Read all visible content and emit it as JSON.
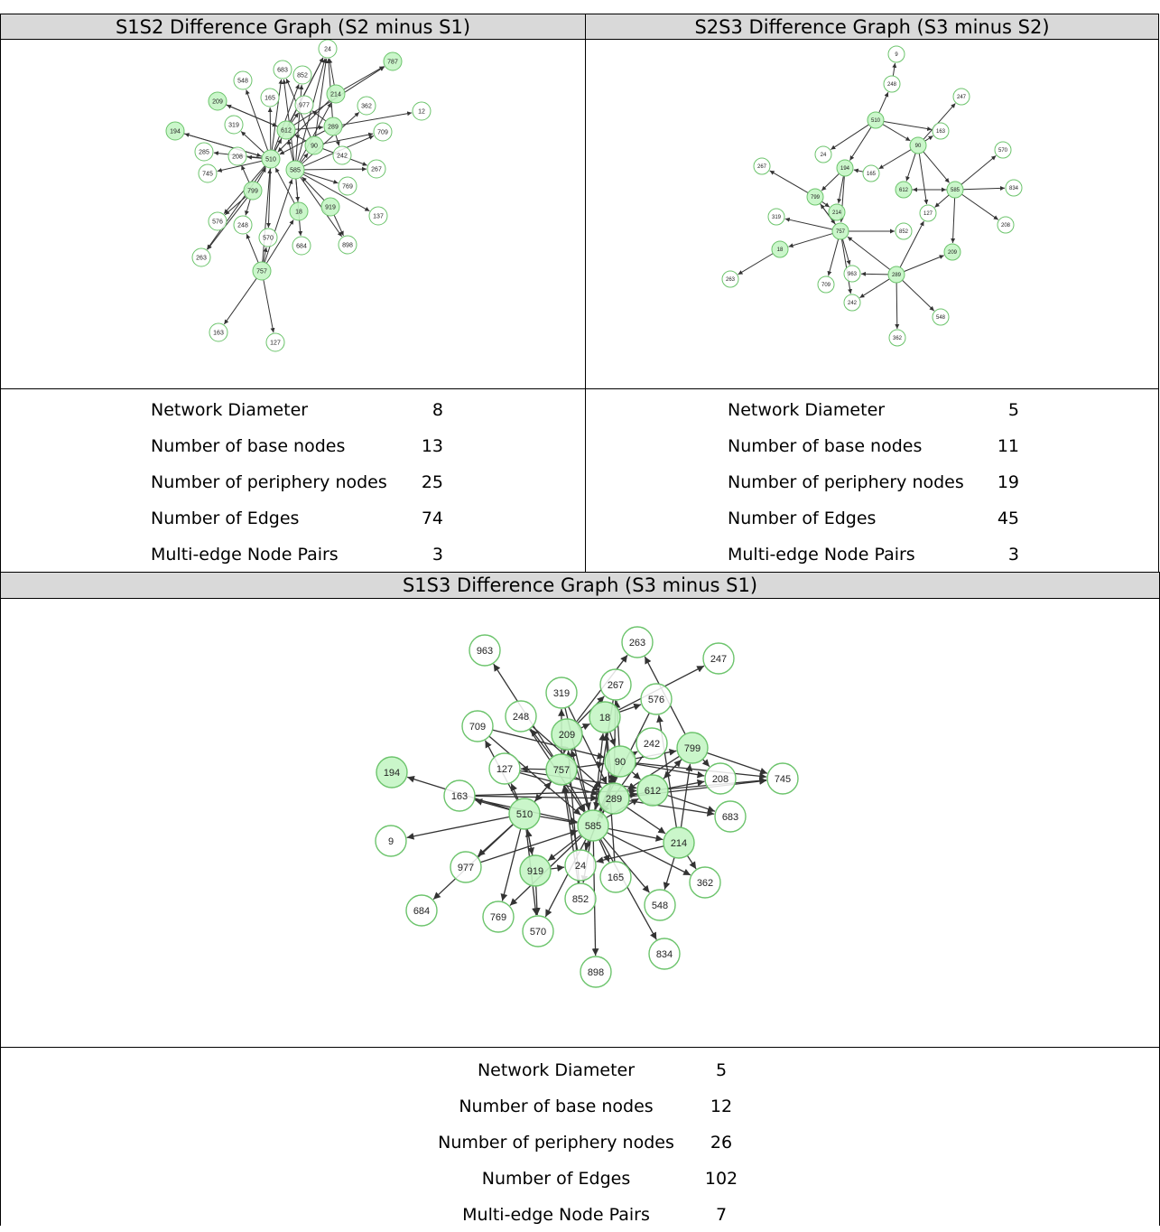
{
  "panels": [
    {
      "id": "s1s2",
      "title": "S1S2 Difference Graph (S2 minus S1)",
      "stats": [
        {
          "label": "Network Diameter",
          "value": "8"
        },
        {
          "label": "Number of base nodes",
          "value": "13"
        },
        {
          "label": "Number of periphery nodes",
          "value": "25"
        },
        {
          "label": "Number of Edges",
          "value": "74"
        },
        {
          "label": "Multi-edge Node Pairs",
          "value": "3"
        }
      ],
      "nodes": [
        {
          "id": "24",
          "base": false
        },
        {
          "id": "787",
          "base": true
        },
        {
          "id": "548",
          "base": false
        },
        {
          "id": "683",
          "base": false
        },
        {
          "id": "852",
          "base": false
        },
        {
          "id": "214",
          "base": true
        },
        {
          "id": "209",
          "base": true
        },
        {
          "id": "165",
          "base": false
        },
        {
          "id": "977",
          "base": false
        },
        {
          "id": "362",
          "base": false
        },
        {
          "id": "12",
          "base": false
        },
        {
          "id": "319",
          "base": false
        },
        {
          "id": "612",
          "base": true
        },
        {
          "id": "289",
          "base": true
        },
        {
          "id": "709",
          "base": false
        },
        {
          "id": "194",
          "base": true
        },
        {
          "id": "90",
          "base": true
        },
        {
          "id": "285",
          "base": false
        },
        {
          "id": "208",
          "base": false
        },
        {
          "id": "510",
          "base": true
        },
        {
          "id": "242",
          "base": false
        },
        {
          "id": "585",
          "base": true
        },
        {
          "id": "267",
          "base": false
        },
        {
          "id": "745",
          "base": false
        },
        {
          "id": "799",
          "base": true
        },
        {
          "id": "769",
          "base": false
        },
        {
          "id": "919",
          "base": true
        },
        {
          "id": "137",
          "base": false
        },
        {
          "id": "18",
          "base": true
        },
        {
          "id": "576",
          "base": false
        },
        {
          "id": "248",
          "base": false
        },
        {
          "id": "570",
          "base": false
        },
        {
          "id": "684",
          "base": false
        },
        {
          "id": "898",
          "base": false
        },
        {
          "id": "263",
          "base": false
        },
        {
          "id": "757",
          "base": true
        },
        {
          "id": "163",
          "base": false
        },
        {
          "id": "127",
          "base": false
        }
      ]
    },
    {
      "id": "s2s3",
      "title": "S2S3 Difference Graph (S3 minus S2)",
      "stats": [
        {
          "label": "Network Diameter",
          "value": "5"
        },
        {
          "label": "Number of base nodes",
          "value": "11"
        },
        {
          "label": "Number of periphery nodes",
          "value": "19"
        },
        {
          "label": "Number of Edges",
          "value": "45"
        },
        {
          "label": "Multi-edge Node Pairs",
          "value": "3"
        }
      ],
      "nodes": [
        {
          "id": "9",
          "base": false
        },
        {
          "id": "248",
          "base": false
        },
        {
          "id": "247",
          "base": false
        },
        {
          "id": "510",
          "base": true
        },
        {
          "id": "163",
          "base": false
        },
        {
          "id": "90",
          "base": true
        },
        {
          "id": "570",
          "base": false
        },
        {
          "id": "24",
          "base": false
        },
        {
          "id": "267",
          "base": false
        },
        {
          "id": "194",
          "base": true
        },
        {
          "id": "165",
          "base": false
        },
        {
          "id": "612",
          "base": true
        },
        {
          "id": "585",
          "base": true
        },
        {
          "id": "834",
          "base": false
        },
        {
          "id": "799",
          "base": true
        },
        {
          "id": "214",
          "base": true
        },
        {
          "id": "127",
          "base": false
        },
        {
          "id": "208",
          "base": false
        },
        {
          "id": "319",
          "base": false
        },
        {
          "id": "757",
          "base": true
        },
        {
          "id": "852",
          "base": false
        },
        {
          "id": "18",
          "base": true
        },
        {
          "id": "209",
          "base": true
        },
        {
          "id": "263",
          "base": false
        },
        {
          "id": "963",
          "base": false
        },
        {
          "id": "289",
          "base": true
        },
        {
          "id": "709",
          "base": false
        },
        {
          "id": "242",
          "base": false
        },
        {
          "id": "548",
          "base": false
        },
        {
          "id": "362",
          "base": false
        }
      ]
    },
    {
      "id": "s1s3",
      "title": "S1S3 Difference Graph (S3 minus S1)",
      "stats": [
        {
          "label": "Network Diameter",
          "value": "5"
        },
        {
          "label": "Number of base nodes",
          "value": "12"
        },
        {
          "label": "Number of periphery nodes",
          "value": "26"
        },
        {
          "label": "Number of Edges",
          "value": "102"
        },
        {
          "label": "Multi-edge Node Pairs",
          "value": "7"
        }
      ],
      "nodes": [
        {
          "id": "963",
          "base": false
        },
        {
          "id": "263",
          "base": false
        },
        {
          "id": "247",
          "base": false
        },
        {
          "id": "267",
          "base": false
        },
        {
          "id": "319",
          "base": false
        },
        {
          "id": "576",
          "base": false
        },
        {
          "id": "709",
          "base": false
        },
        {
          "id": "248",
          "base": false
        },
        {
          "id": "18",
          "base": true
        },
        {
          "id": "209",
          "base": true
        },
        {
          "id": "242",
          "base": false
        },
        {
          "id": "799",
          "base": true
        },
        {
          "id": "194",
          "base": true
        },
        {
          "id": "127",
          "base": false
        },
        {
          "id": "757",
          "base": true
        },
        {
          "id": "90",
          "base": true
        },
        {
          "id": "208",
          "base": false
        },
        {
          "id": "745",
          "base": false
        },
        {
          "id": "163",
          "base": false
        },
        {
          "id": "289",
          "base": true
        },
        {
          "id": "612",
          "base": true
        },
        {
          "id": "683",
          "base": false
        },
        {
          "id": "510",
          "base": true
        },
        {
          "id": "585",
          "base": true
        },
        {
          "id": "9",
          "base": false
        },
        {
          "id": "214",
          "base": true
        },
        {
          "id": "977",
          "base": false
        },
        {
          "id": "919",
          "base": true
        },
        {
          "id": "24",
          "base": false
        },
        {
          "id": "165",
          "base": false
        },
        {
          "id": "362",
          "base": false
        },
        {
          "id": "852",
          "base": false
        },
        {
          "id": "548",
          "base": false
        },
        {
          "id": "684",
          "base": false
        },
        {
          "id": "769",
          "base": false
        },
        {
          "id": "570",
          "base": false
        },
        {
          "id": "834",
          "base": false
        },
        {
          "id": "898",
          "base": false
        }
      ]
    }
  ],
  "colors": {
    "header_bg": "#d9d9d9",
    "base_fill": "#c4f5c4",
    "node_stroke": "#6cc46c",
    "edge": "#333333"
  }
}
